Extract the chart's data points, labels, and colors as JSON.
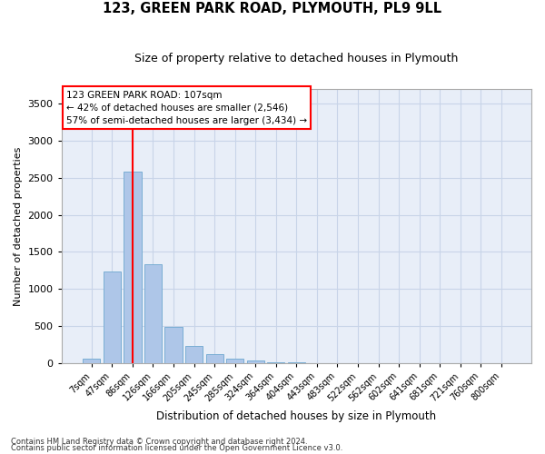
{
  "title": "123, GREEN PARK ROAD, PLYMOUTH, PL9 9LL",
  "subtitle": "Size of property relative to detached houses in Plymouth",
  "xlabel": "Distribution of detached houses by size in Plymouth",
  "ylabel": "Number of detached properties",
  "bin_labels": [
    "7sqm",
    "47sqm",
    "86sqm",
    "126sqm",
    "166sqm",
    "205sqm",
    "245sqm",
    "285sqm",
    "324sqm",
    "364sqm",
    "404sqm",
    "443sqm",
    "483sqm",
    "522sqm",
    "562sqm",
    "602sqm",
    "641sqm",
    "681sqm",
    "721sqm",
    "760sqm",
    "800sqm"
  ],
  "bar_values": [
    55,
    1240,
    2580,
    1330,
    490,
    230,
    120,
    55,
    30,
    10,
    5,
    0,
    0,
    0,
    0,
    0,
    0,
    0,
    0,
    0,
    0
  ],
  "bar_color": "#aec6e8",
  "bar_edge_color": "#7aaed4",
  "grid_color": "#c8d4e8",
  "background_color": "#e8eef8",
  "vline_color": "red",
  "vline_x_bar_index": 2,
  "annotation_text": "123 GREEN PARK ROAD: 107sqm\n← 42% of detached houses are smaller (2,546)\n57% of semi-detached houses are larger (3,434) →",
  "annotation_box_facecolor": "white",
  "annotation_box_edgecolor": "red",
  "ylim": [
    0,
    3700
  ],
  "yticks": [
    0,
    500,
    1000,
    1500,
    2000,
    2500,
    3000,
    3500
  ],
  "footer_line1": "Contains HM Land Registry data © Crown copyright and database right 2024.",
  "footer_line2": "Contains public sector information licensed under the Open Government Licence v3.0.",
  "title_fontsize": 10.5,
  "subtitle_fontsize": 9,
  "ylabel_fontsize": 8,
  "xlabel_fontsize": 8.5,
  "ytick_fontsize": 8,
  "xtick_fontsize": 7,
  "annotation_fontsize": 7.5,
  "footer_fontsize": 6
}
